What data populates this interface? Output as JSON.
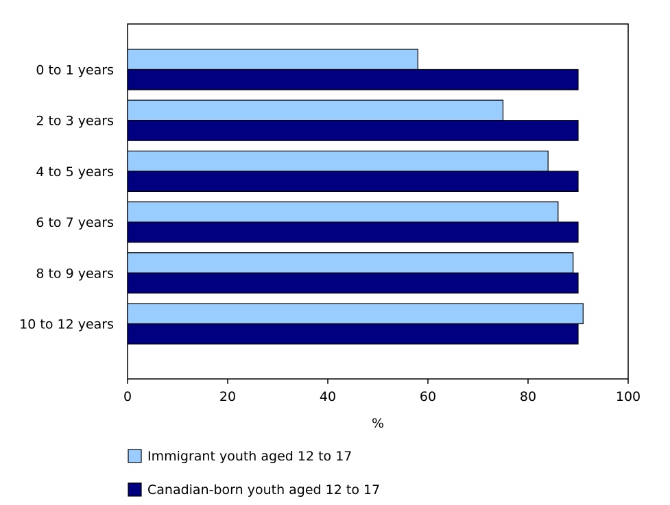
{
  "chart_data": {
    "type": "bar",
    "orientation": "horizontal",
    "title": "",
    "xlabel": "%",
    "ylabel": "",
    "xlim": [
      0,
      100
    ],
    "x_ticks": [
      0,
      20,
      40,
      60,
      80,
      100
    ],
    "grid": false,
    "legend_position": "bottom-left",
    "categories": [
      "0 to 1 years",
      "2 to 3 years",
      "4 to 5 years",
      "6 to 7 years",
      "8 to 9 years",
      "10 to 12 years"
    ],
    "series": [
      {
        "name": "Immigrant youth aged 12 to 17",
        "color": "#99ccff",
        "values": [
          58,
          75,
          84,
          86,
          89,
          91
        ]
      },
      {
        "name": "Canadian-born youth aged 12 to 17",
        "color": "#000080",
        "values": [
          90,
          90,
          90,
          90,
          90,
          90
        ]
      }
    ]
  }
}
